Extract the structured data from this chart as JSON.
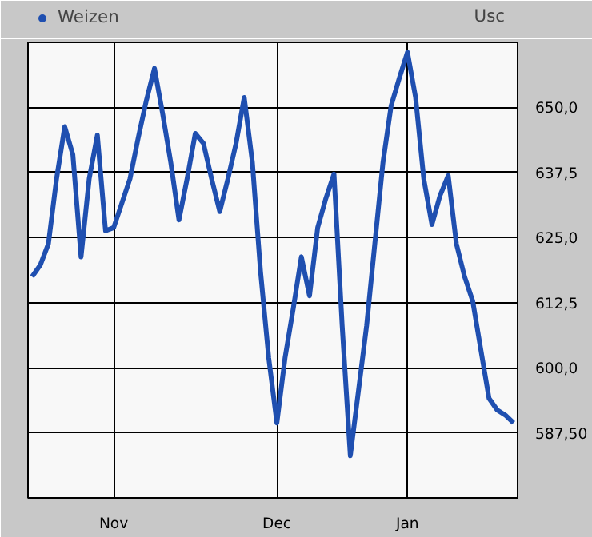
{
  "chart_data": {
    "type": "line",
    "ylabel": "Usc",
    "legend": "top left",
    "grid": true,
    "line_style": "solid",
    "categories": [
      null,
      null,
      null,
      null,
      null,
      null,
      null,
      null,
      null,
      null,
      "Nov",
      null,
      null,
      null,
      null,
      null,
      null,
      null,
      null,
      null,
      null,
      null,
      null,
      null,
      null,
      null,
      null,
      null,
      null,
      null,
      "Dec",
      null,
      null,
      null,
      null,
      null,
      null,
      null,
      null,
      null,
      null,
      null,
      null,
      null,
      null,
      null,
      "Jan",
      null,
      null,
      null,
      null,
      null,
      null,
      null,
      null,
      null,
      null,
      null,
      null,
      null
    ],
    "ylim": [
      575,
      662.5
    ],
    "yticks": [
      {
        "value": 587.5,
        "label": "587,50"
      },
      {
        "value": 600,
        "label": "600,0"
      },
      {
        "value": 612.5,
        "label": "612,5"
      },
      {
        "value": 625,
        "label": "625,0"
      },
      {
        "value": 637.5,
        "label": "637,5"
      },
      {
        "value": 650,
        "label": "650,0"
      }
    ],
    "series": [
      {
        "name": "Weizen",
        "color": "#1f4fb0",
        "values": [
          617.5,
          619.7,
          623.8,
          636.3,
          646.3,
          640.9,
          621.3,
          636.3,
          644.7,
          626.3,
          626.9,
          631.6,
          636.3,
          644.1,
          651.3,
          657.5,
          648.8,
          639.4,
          628.4,
          636.3,
          645,
          643.1,
          636.3,
          630,
          636.3,
          643.1,
          651.9,
          639.4,
          618.4,
          601.9,
          589.4,
          601.9,
          611.3,
          621.3,
          613.8,
          626.9,
          632.5,
          637.2,
          608.1,
          583.1,
          595.6,
          608.1,
          623.8,
          639.4,
          650.3,
          655.6,
          660.6,
          651.9,
          636.3,
          627.5,
          633.1,
          636.9,
          623.8,
          617.5,
          612.8,
          603.4,
          594.1,
          591.9,
          590.9,
          589.4
        ]
      }
    ]
  }
}
